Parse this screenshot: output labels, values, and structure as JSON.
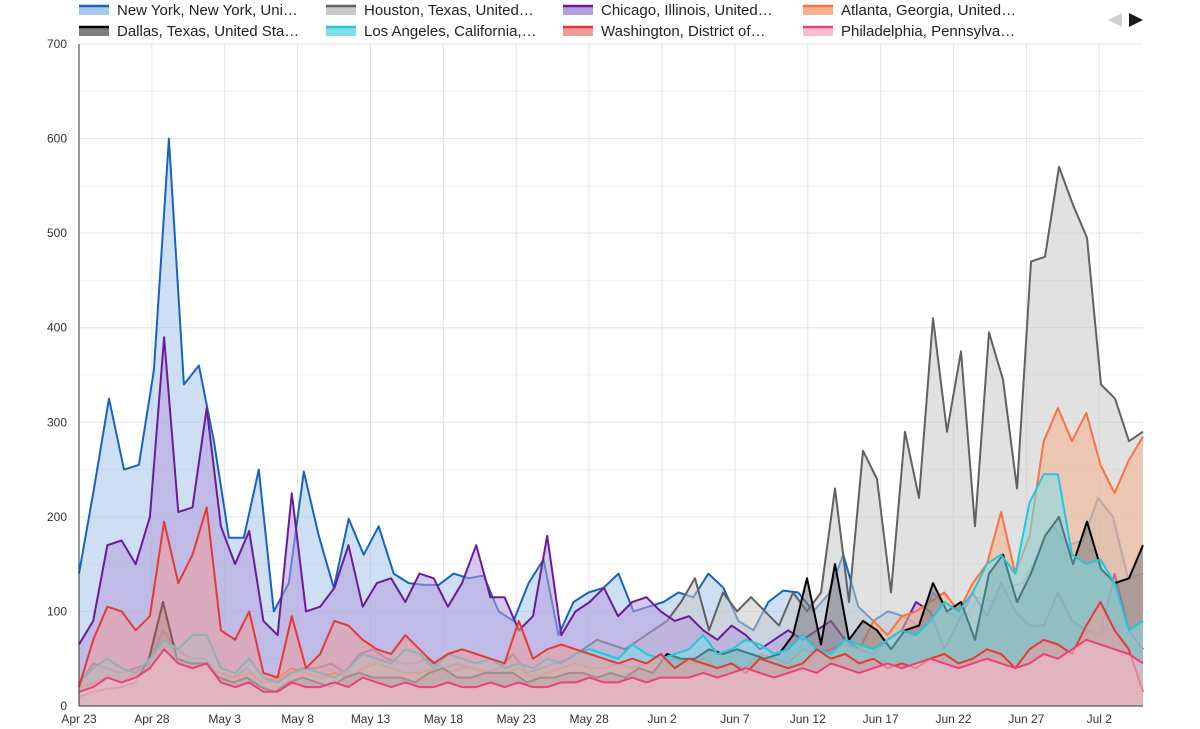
{
  "chart_data": {
    "type": "area",
    "title": "",
    "xlabel": "",
    "ylabel": "",
    "x_start": "2020-04-23",
    "x_end": "2020-07-05",
    "x_tick_labels": [
      "Apr 23",
      "Apr 28",
      "May 3",
      "May 8",
      "May 13",
      "May 18",
      "May 23",
      "May 28",
      "Jun 2",
      "Jun 7",
      "Jun 12",
      "Jun 17",
      "Jun 22",
      "Jun 27",
      "Jul 2"
    ],
    "y_tick_labels": [
      "0",
      "100",
      "200",
      "300",
      "400",
      "500",
      "600",
      "700"
    ],
    "ylim": [
      0,
      700
    ],
    "grid": true,
    "legend_position": "top",
    "legend_pager": {
      "prev_icon": "triangle-left-icon",
      "next_icon": "triangle-right-icon"
    },
    "series": [
      {
        "name": "New York, New York, Uni…",
        "color": "#1565c0",
        "fill": "#a8c5ea",
        "values": [
          140,
          230,
          325,
          250,
          255,
          355,
          600,
          340,
          360,
          280,
          178,
          178,
          250,
          100,
          130,
          248,
          180,
          125,
          198,
          160,
          190,
          140,
          130,
          128,
          128,
          140,
          135,
          138,
          100,
          90,
          130,
          155,
          75,
          110,
          120,
          125,
          140,
          100,
          105,
          110,
          120,
          115,
          140,
          125,
          90,
          80,
          110,
          122,
          120,
          100,
          118,
          160,
          105,
          90,
          100,
          95,
          85,
          120,
          100,
          90,
          115,
          110,
          125,
          130,
          160,
          190,
          170,
          175,
          220,
          200,
          135,
          140
        ]
      },
      {
        "name": "Houston, Texas, United…",
        "color": "#616161",
        "fill": "#c8c8c8",
        "values": [
          22,
          45,
          40,
          35,
          40,
          45,
          80,
          60,
          50,
          50,
          30,
          30,
          40,
          25,
          25,
          35,
          40,
          40,
          45,
          35,
          55,
          60,
          50,
          45,
          45,
          50,
          40,
          45,
          40,
          35,
          40,
          55,
          35,
          40,
          45,
          50,
          60,
          70,
          65,
          60,
          70,
          80,
          90,
          110,
          135,
          80,
          120,
          100,
          115,
          100,
          85,
          120,
          100,
          120,
          230,
          110,
          270,
          240,
          120,
          290,
          220,
          410,
          290,
          375,
          190,
          395,
          345,
          230,
          470,
          475,
          570,
          530,
          495,
          340,
          325,
          280,
          290
        ]
      },
      {
        "name": "Chicago, Illinois, United…",
        "color": "#6a1b9a",
        "fill": "#b39ddb",
        "values": [
          65,
          90,
          170,
          175,
          150,
          200,
          390,
          205,
          210,
          315,
          190,
          150,
          185,
          90,
          75,
          225,
          100,
          105,
          125,
          170,
          105,
          130,
          135,
          110,
          140,
          135,
          105,
          130,
          170,
          115,
          115,
          80,
          95,
          180,
          75,
          100,
          110,
          125,
          95,
          110,
          115,
          100,
          90,
          95,
          80,
          70,
          85,
          75,
          60,
          70,
          80,
          70,
          80,
          90,
          70,
          60,
          55,
          70,
          80,
          110,
          100,
          60,
          90,
          120,
          95,
          130,
          100,
          85,
          85,
          120,
          90,
          80,
          75,
          140,
          80,
          60
        ]
      },
      {
        "name": "Atlanta, Georgia, United…",
        "color": "#ff7043",
        "fill": "#f5b28e",
        "values": [
          20,
          25,
          30,
          25,
          35,
          40,
          50,
          40,
          35,
          40,
          35,
          30,
          35,
          25,
          30,
          40,
          35,
          30,
          35,
          30,
          40,
          45,
          40,
          35,
          35,
          40,
          35,
          40,
          40,
          35,
          35,
          40,
          30,
          35,
          40,
          45,
          40,
          40,
          45,
          40,
          45,
          45,
          50,
          45,
          50,
          40,
          45,
          40,
          55,
          50,
          45,
          60,
          55,
          60,
          65,
          60,
          90,
          75,
          95,
          100,
          110,
          120,
          100,
          130,
          150,
          205,
          140,
          180,
          280,
          315,
          280,
          310,
          255,
          225,
          260,
          285
        ]
      },
      {
        "name": "Dallas, Texas, United Sta…",
        "color": "#000000",
        "fill": "#7d7d7d",
        "values": [
          10,
          15,
          18,
          20,
          25,
          50,
          110,
          50,
          45,
          45,
          30,
          25,
          30,
          20,
          15,
          25,
          30,
          25,
          20,
          30,
          35,
          30,
          30,
          30,
          25,
          35,
          40,
          30,
          30,
          35,
          35,
          35,
          25,
          30,
          30,
          35,
          35,
          30,
          35,
          30,
          40,
          35,
          55,
          50,
          50,
          60,
          55,
          60,
          55,
          50,
          55,
          75,
          135,
          65,
          150,
          70,
          90,
          80,
          60,
          80,
          85,
          130,
          100,
          110,
          70,
          140,
          160,
          110,
          140,
          180,
          200,
          150,
          195,
          145,
          130,
          135,
          170
        ]
      },
      {
        "name": "Los Angeles, California,…",
        "color": "#26c6da",
        "fill": "#80deea",
        "values": [
          25,
          40,
          50,
          40,
          35,
          50,
          70,
          60,
          75,
          75,
          40,
          35,
          50,
          30,
          25,
          35,
          40,
          35,
          30,
          40,
          55,
          50,
          45,
          60,
          55,
          40,
          55,
          50,
          45,
          50,
          40,
          45,
          40,
          50,
          45,
          55,
          60,
          55,
          50,
          65,
          55,
          50,
          55,
          60,
          75,
          55,
          60,
          70,
          65,
          55,
          60,
          75,
          60,
          55,
          70,
          65,
          60,
          70,
          80,
          75,
          90,
          110,
          100,
          120,
          150,
          160,
          140,
          215,
          245,
          245,
          160,
          150,
          155,
          130,
          80,
          90
        ]
      },
      {
        "name": "Washington, District of…",
        "color": "#e53935",
        "fill": "#ef9a9a",
        "values": [
          20,
          70,
          105,
          100,
          80,
          95,
          195,
          130,
          160,
          210,
          80,
          70,
          100,
          35,
          30,
          95,
          40,
          55,
          90,
          85,
          70,
          60,
          55,
          75,
          60,
          45,
          55,
          60,
          55,
          50,
          45,
          90,
          50,
          60,
          65,
          60,
          55,
          50,
          45,
          50,
          45,
          55,
          40,
          50,
          45,
          40,
          45,
          35,
          50,
          45,
          40,
          45,
          60,
          50,
          55,
          45,
          50,
          40,
          45,
          40,
          50,
          55,
          45,
          50,
          60,
          55,
          40,
          60,
          70,
          65,
          55,
          85,
          110,
          80,
          60,
          15
        ]
      },
      {
        "name": "Philadelphia, Pennsylva…",
        "color": "#ec407a",
        "fill": "#f8bbd0",
        "values": [
          15,
          20,
          30,
          25,
          30,
          40,
          60,
          45,
          40,
          45,
          25,
          20,
          25,
          15,
          15,
          25,
          20,
          20,
          25,
          20,
          30,
          25,
          20,
          25,
          20,
          20,
          25,
          20,
          20,
          25,
          20,
          25,
          20,
          20,
          25,
          25,
          30,
          25,
          25,
          30,
          25,
          30,
          30,
          30,
          35,
          30,
          35,
          40,
          35,
          30,
          35,
          40,
          35,
          45,
          40,
          35,
          40,
          45,
          40,
          45,
          50,
          45,
          40,
          45,
          50,
          45,
          40,
          45,
          55,
          50,
          60,
          70,
          65,
          60,
          55,
          45
        ]
      }
    ]
  }
}
